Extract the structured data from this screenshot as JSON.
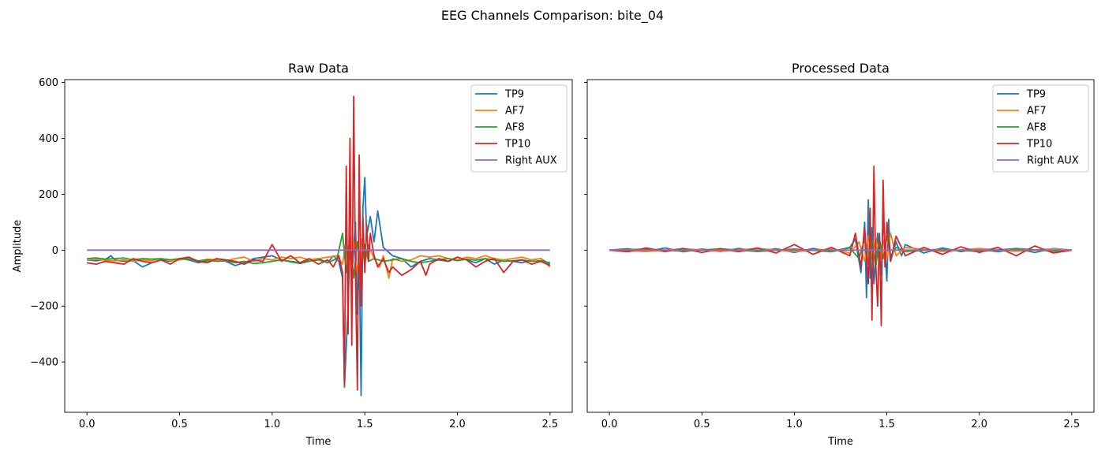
{
  "figure": {
    "suptitle": "EEG Channels Comparison: bite_04"
  },
  "chart_data": [
    {
      "type": "line",
      "title": "Raw Data",
      "xlabel": "Time",
      "ylabel": "Amplitude",
      "xlim": [
        -0.12,
        2.62
      ],
      "ylim": [
        -580,
        610
      ],
      "xticks": [
        0.0,
        0.5,
        1.0,
        1.5,
        2.0,
        2.5
      ],
      "xtick_labels": [
        "0.0",
        "0.5",
        "1.0",
        "1.5",
        "2.0",
        "2.5"
      ],
      "yticks": [
        -400,
        -200,
        0,
        200,
        400,
        600
      ],
      "ytick_labels": [
        "−400",
        "−200",
        "0",
        "200",
        "400",
        "600"
      ],
      "legend_position": "top-right",
      "grid": false,
      "series": [
        {
          "name": "TP9",
          "color": "#1f77b4",
          "x": [
            0.0,
            0.05,
            0.1,
            0.13,
            0.15,
            0.2,
            0.25,
            0.3,
            0.35,
            0.4,
            0.45,
            0.5,
            0.55,
            0.6,
            0.65,
            0.7,
            0.75,
            0.8,
            0.85,
            0.9,
            0.95,
            1.0,
            1.05,
            1.1,
            1.15,
            1.2,
            1.25,
            1.3,
            1.33,
            1.36,
            1.38,
            1.39,
            1.41,
            1.42,
            1.43,
            1.45,
            1.46,
            1.47,
            1.48,
            1.49,
            1.5,
            1.51,
            1.53,
            1.55,
            1.57,
            1.6,
            1.65,
            1.7,
            1.75,
            1.8,
            1.85,
            1.9,
            1.95,
            2.0,
            2.05,
            2.1,
            2.15,
            2.2,
            2.25,
            2.3,
            2.35,
            2.4,
            2.45,
            2.5
          ],
          "y": [
            -35,
            -38,
            -33,
            -20,
            -35,
            -40,
            -38,
            -60,
            -45,
            -35,
            -40,
            -30,
            -35,
            -45,
            -38,
            -35,
            -40,
            -55,
            -45,
            -30,
            -25,
            -20,
            -35,
            -40,
            -45,
            -35,
            -30,
            -45,
            -20,
            -40,
            -100,
            -490,
            -200,
            20,
            -100,
            100,
            -230,
            0,
            -520,
            150,
            260,
            50,
            120,
            30,
            140,
            10,
            -20,
            -30,
            -60,
            -40,
            -30,
            -35,
            -40,
            -25,
            -35,
            -45,
            -30,
            -50,
            -35,
            -40,
            -45,
            -35,
            -30,
            -50
          ]
        },
        {
          "name": "AF7",
          "color": "#ff7f0e",
          "x": [
            0.0,
            0.05,
            0.1,
            0.15,
            0.2,
            0.25,
            0.3,
            0.35,
            0.4,
            0.45,
            0.5,
            0.55,
            0.6,
            0.65,
            0.7,
            0.75,
            0.8,
            0.85,
            0.9,
            0.95,
            1.0,
            1.05,
            1.1,
            1.15,
            1.2,
            1.25,
            1.3,
            1.35,
            1.38,
            1.4,
            1.42,
            1.44,
            1.46,
            1.48,
            1.5,
            1.52,
            1.55,
            1.58,
            1.6,
            1.63,
            1.65,
            1.7,
            1.75,
            1.8,
            1.85,
            1.9,
            1.95,
            2.0,
            2.05,
            2.1,
            2.15,
            2.2,
            2.25,
            2.3,
            2.35,
            2.4,
            2.45,
            2.5
          ],
          "y": [
            -35,
            -33,
            -36,
            -38,
            -35,
            -40,
            -35,
            -38,
            -30,
            -38,
            -35,
            -30,
            -40,
            -32,
            -35,
            -38,
            -30,
            -25,
            -40,
            -30,
            -35,
            -25,
            -30,
            -25,
            -35,
            -30,
            -25,
            -20,
            -50,
            40,
            -60,
            30,
            -80,
            40,
            -50,
            20,
            -30,
            -60,
            -20,
            -100,
            -30,
            -40,
            -35,
            -20,
            -25,
            -20,
            -30,
            -35,
            -25,
            -30,
            -20,
            -30,
            -35,
            -30,
            -25,
            -35,
            -30,
            -60
          ]
        },
        {
          "name": "AF8",
          "color": "#2ca02c",
          "x": [
            0.0,
            0.05,
            0.1,
            0.15,
            0.2,
            0.25,
            0.3,
            0.35,
            0.4,
            0.45,
            0.5,
            0.55,
            0.6,
            0.65,
            0.7,
            0.75,
            0.8,
            0.85,
            0.9,
            0.95,
            1.0,
            1.05,
            1.1,
            1.15,
            1.2,
            1.25,
            1.3,
            1.35,
            1.38,
            1.4,
            1.42,
            1.44,
            1.46,
            1.48,
            1.5,
            1.52,
            1.55,
            1.6,
            1.65,
            1.7,
            1.75,
            1.8,
            1.85,
            1.9,
            1.95,
            2.0,
            2.05,
            2.1,
            2.15,
            2.2,
            2.25,
            2.3,
            2.35,
            2.4,
            2.45,
            2.5
          ],
          "y": [
            -30,
            -28,
            -32,
            -30,
            -28,
            -35,
            -30,
            -32,
            -30,
            -35,
            -30,
            -32,
            -38,
            -35,
            -40,
            -38,
            -45,
            -40,
            -48,
            -45,
            -40,
            -35,
            -42,
            -48,
            -40,
            -35,
            -45,
            -30,
            60,
            -80,
            50,
            -100,
            30,
            -60,
            20,
            -40,
            -30,
            -40,
            -35,
            -30,
            -40,
            -45,
            -40,
            -35,
            -30,
            -38,
            -32,
            -36,
            -30,
            -35,
            -40,
            -38,
            -35,
            -40,
            -38,
            -45
          ]
        },
        {
          "name": "TP10",
          "color": "#d62728",
          "x": [
            0.0,
            0.05,
            0.1,
            0.15,
            0.2,
            0.25,
            0.3,
            0.35,
            0.4,
            0.45,
            0.5,
            0.55,
            0.6,
            0.65,
            0.7,
            0.75,
            0.8,
            0.85,
            0.9,
            0.95,
            1.0,
            1.05,
            1.1,
            1.15,
            1.2,
            1.25,
            1.3,
            1.33,
            1.36,
            1.38,
            1.39,
            1.4,
            1.41,
            1.42,
            1.43,
            1.44,
            1.45,
            1.46,
            1.47,
            1.48,
            1.49,
            1.5,
            1.51,
            1.52,
            1.53,
            1.55,
            1.57,
            1.6,
            1.63,
            1.65,
            1.7,
            1.75,
            1.8,
            1.83,
            1.85,
            1.9,
            1.95,
            2.0,
            2.05,
            2.1,
            2.15,
            2.2,
            2.25,
            2.3,
            2.35,
            2.4,
            2.45,
            2.5
          ],
          "y": [
            -45,
            -50,
            -40,
            -45,
            -50,
            -30,
            -40,
            -45,
            -35,
            -50,
            -30,
            -25,
            -40,
            -45,
            -30,
            -35,
            -40,
            -50,
            -35,
            -40,
            20,
            -40,
            -20,
            -45,
            -30,
            -50,
            -35,
            -60,
            -20,
            -80,
            -480,
            300,
            -300,
            400,
            -340,
            550,
            -100,
            -500,
            340,
            -200,
            120,
            -80,
            90,
            -40,
            60,
            -20,
            -60,
            -30,
            -80,
            -60,
            -90,
            -70,
            -40,
            -90,
            -50,
            -30,
            -40,
            -25,
            -35,
            -60,
            -40,
            -30,
            -80,
            -40,
            -35,
            -50,
            -40,
            -55
          ]
        },
        {
          "name": "Right AUX",
          "color": "#9467bd",
          "x": [
            0.0,
            2.5
          ],
          "y": [
            0,
            0
          ]
        }
      ]
    },
    {
      "type": "line",
      "title": "Processed Data",
      "xlabel": "Time",
      "ylabel": "",
      "xlim": [
        -0.12,
        2.62
      ],
      "ylim": [
        -580,
        610
      ],
      "xticks": [
        0.0,
        0.5,
        1.0,
        1.5,
        2.0,
        2.5
      ],
      "xtick_labels": [
        "0.0",
        "0.5",
        "1.0",
        "1.5",
        "2.0",
        "2.5"
      ],
      "yticks": [
        -400,
        -200,
        0,
        200,
        400,
        600
      ],
      "ytick_labels": [],
      "legend_position": "top-right",
      "grid": false,
      "series": [
        {
          "name": "TP9",
          "color": "#1f77b4",
          "x": [
            0.0,
            0.1,
            0.2,
            0.3,
            0.4,
            0.5,
            0.6,
            0.7,
            0.8,
            0.9,
            1.0,
            1.1,
            1.2,
            1.3,
            1.33,
            1.36,
            1.38,
            1.39,
            1.4,
            1.41,
            1.42,
            1.43,
            1.45,
            1.47,
            1.48,
            1.5,
            1.51,
            1.52,
            1.55,
            1.58,
            1.6,
            1.7,
            1.8,
            1.9,
            2.0,
            2.1,
            2.2,
            2.3,
            2.4,
            2.5
          ],
          "y": [
            0,
            5,
            -5,
            8,
            -6,
            4,
            -5,
            6,
            -4,
            5,
            -8,
            6,
            -5,
            10,
            40,
            -80,
            100,
            -170,
            180,
            -100,
            80,
            -120,
            60,
            -90,
            120,
            -110,
            110,
            -40,
            30,
            -20,
            20,
            -10,
            8,
            -5,
            4,
            -6,
            5,
            -8,
            6,
            0
          ]
        },
        {
          "name": "AF7",
          "color": "#ff7f0e",
          "x": [
            0.0,
            0.2,
            0.4,
            0.6,
            0.8,
            1.0,
            1.2,
            1.3,
            1.35,
            1.38,
            1.4,
            1.42,
            1.44,
            1.46,
            1.48,
            1.5,
            1.52,
            1.55,
            1.6,
            1.8,
            2.0,
            2.2,
            2.4,
            2.5
          ],
          "y": [
            0,
            -5,
            5,
            -4,
            6,
            -5,
            4,
            -10,
            30,
            -40,
            50,
            -30,
            40,
            -50,
            35,
            -30,
            60,
            -20,
            10,
            -5,
            6,
            -4,
            5,
            0
          ]
        },
        {
          "name": "AF8",
          "color": "#2ca02c",
          "x": [
            0.0,
            0.2,
            0.4,
            0.6,
            0.8,
            1.0,
            1.2,
            1.3,
            1.35,
            1.38,
            1.4,
            1.42,
            1.44,
            1.46,
            1.48,
            1.5,
            1.52,
            1.55,
            1.6,
            1.8,
            2.0,
            2.2,
            2.4,
            2.5
          ],
          "y": [
            0,
            4,
            -4,
            5,
            -5,
            4,
            -6,
            8,
            -30,
            40,
            -50,
            30,
            -60,
            40,
            -30,
            50,
            -20,
            10,
            -5,
            4,
            -5,
            6,
            -4,
            0
          ]
        },
        {
          "name": "TP10",
          "color": "#d62728",
          "x": [
            0.0,
            0.1,
            0.2,
            0.3,
            0.4,
            0.5,
            0.6,
            0.7,
            0.8,
            0.9,
            1.0,
            1.1,
            1.2,
            1.3,
            1.33,
            1.36,
            1.38,
            1.4,
            1.41,
            1.42,
            1.43,
            1.44,
            1.45,
            1.46,
            1.47,
            1.48,
            1.49,
            1.5,
            1.52,
            1.55,
            1.6,
            1.7,
            1.8,
            1.9,
            2.0,
            2.1,
            2.2,
            2.3,
            2.4,
            2.5
          ],
          "y": [
            0,
            -6,
            8,
            -5,
            6,
            -8,
            5,
            -6,
            8,
            -10,
            20,
            -15,
            10,
            -20,
            60,
            -60,
            80,
            -120,
            150,
            -250,
            300,
            -50,
            -200,
            60,
            -270,
            250,
            -60,
            100,
            -40,
            50,
            -20,
            10,
            -15,
            12,
            -8,
            10,
            -20,
            15,
            -10,
            0
          ]
        },
        {
          "name": "Right AUX",
          "color": "#9467bd",
          "x": [
            0.0,
            2.5
          ],
          "y": [
            0,
            0
          ]
        }
      ]
    }
  ]
}
